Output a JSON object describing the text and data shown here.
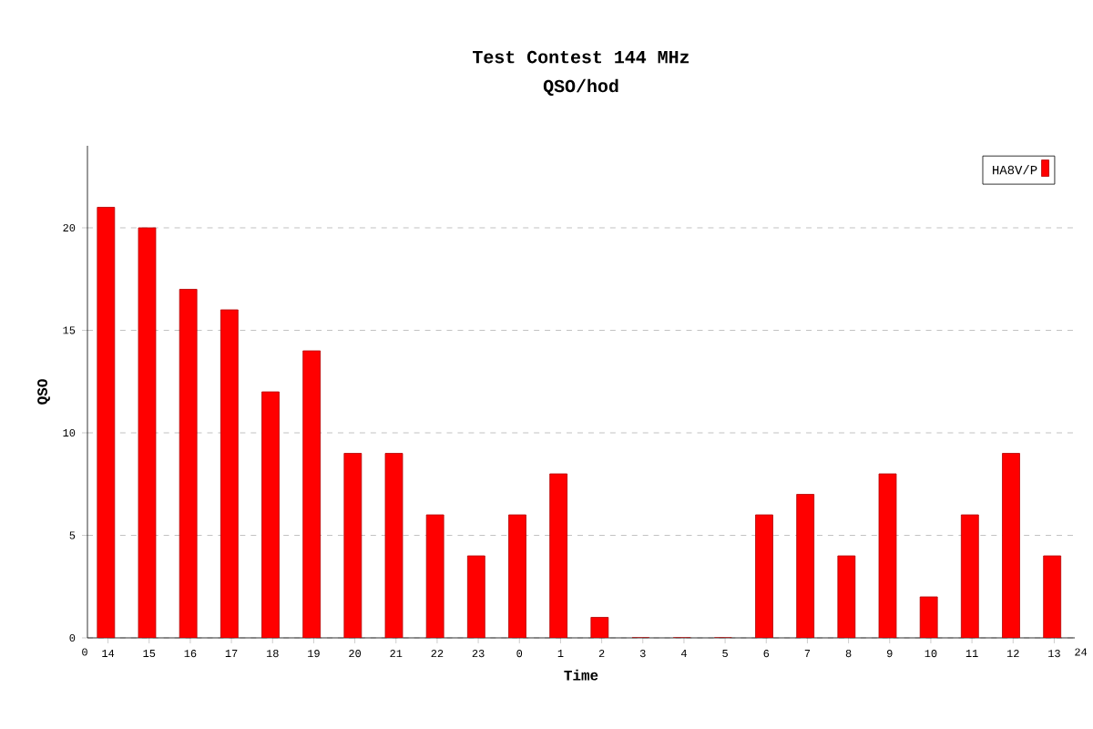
{
  "chart_data": {
    "type": "bar",
    "title": "Test Contest 144 MHz",
    "subtitle": "QSO/hod",
    "xlabel": "Time",
    "ylabel": "QSO",
    "categories": [
      "14",
      "15",
      "16",
      "17",
      "18",
      "19",
      "20",
      "21",
      "22",
      "23",
      "0",
      "1",
      "2",
      "3",
      "4",
      "5",
      "6",
      "7",
      "8",
      "9",
      "10",
      "11",
      "12",
      "13"
    ],
    "series": [
      {
        "name": "HA8V/P",
        "color": "#ff0000",
        "values": [
          21,
          20,
          17,
          16,
          12,
          14,
          9,
          9,
          6,
          4,
          6,
          8,
          1,
          0,
          0,
          0,
          6,
          7,
          4,
          8,
          2,
          6,
          9,
          4
        ]
      }
    ],
    "ylim": [
      0,
      24
    ],
    "yticks": [
      0,
      5,
      10,
      15,
      20
    ],
    "grid": "y",
    "legend": "top right",
    "annotations": [
      "0",
      "24"
    ]
  }
}
